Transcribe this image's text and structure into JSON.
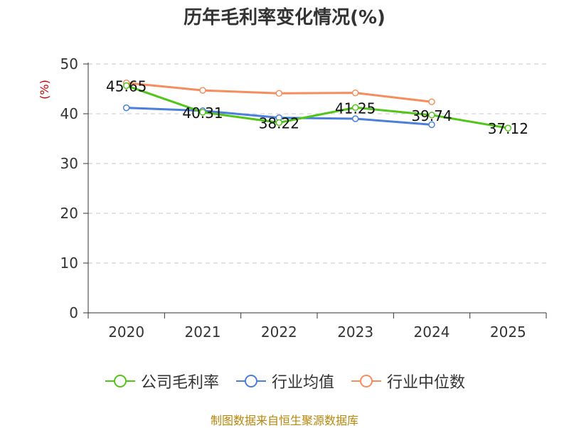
{
  "chart_data": {
    "type": "line",
    "title": "历年毛利率变化情况(%)",
    "ylabel": "(%)",
    "xlabel": "",
    "categories": [
      "2020",
      "2021",
      "2022",
      "2023",
      "2024",
      "2025"
    ],
    "ylim": [
      0,
      50
    ],
    "yticks": [
      0,
      10,
      20,
      30,
      40,
      50
    ],
    "grid": true,
    "legend_position": "bottom",
    "series": [
      {
        "name": "公司毛利率",
        "color": "#52c41a",
        "values": [
          45.65,
          40.31,
          38.22,
          41.25,
          39.74,
          37.12
        ],
        "labels": [
          "45.65",
          "40.31",
          "38.22",
          "41.25",
          "39.74",
          "37.12"
        ]
      },
      {
        "name": "行业均值",
        "color": "#4a7fdb",
        "values": [
          41.2,
          40.6,
          39.2,
          39.0,
          37.8,
          null
        ]
      },
      {
        "name": "行业中位数",
        "color": "#f58e5c",
        "values": [
          46.2,
          44.7,
          44.1,
          44.2,
          42.4,
          null
        ]
      }
    ]
  },
  "source": "制图数据来自恒生聚源数据库"
}
